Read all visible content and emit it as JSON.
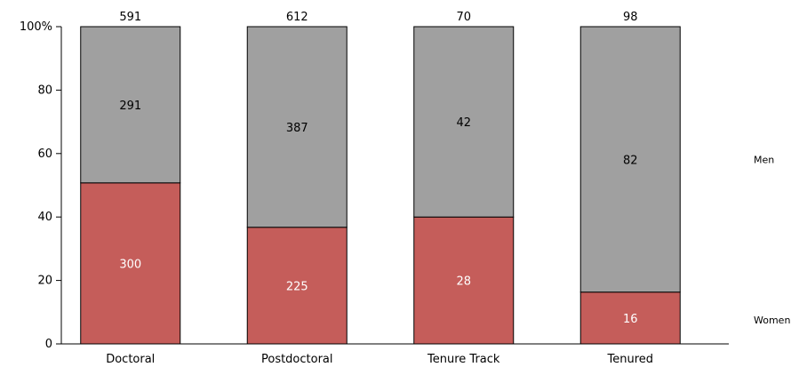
{
  "chart_data": {
    "type": "bar",
    "stacked": true,
    "normalized": true,
    "categories": [
      "Doctoral",
      "Postdoctoral",
      "Tenure Track",
      "Tenured"
    ],
    "totals": [
      591,
      612,
      70,
      98
    ],
    "series": [
      {
        "name": "Women",
        "values": [
          300,
          225,
          28,
          16
        ],
        "color": "#c55d5a",
        "label_color": "#ffffff"
      },
      {
        "name": "Men",
        "values": [
          291,
          387,
          42,
          82
        ],
        "color": "#a0a0a0",
        "label_color": "#000000"
      }
    ],
    "y_ticks": [
      "0",
      "20",
      "40",
      "60",
      "80",
      "100%"
    ],
    "ylim": [
      0,
      100
    ],
    "grid": false,
    "legend": "right"
  }
}
